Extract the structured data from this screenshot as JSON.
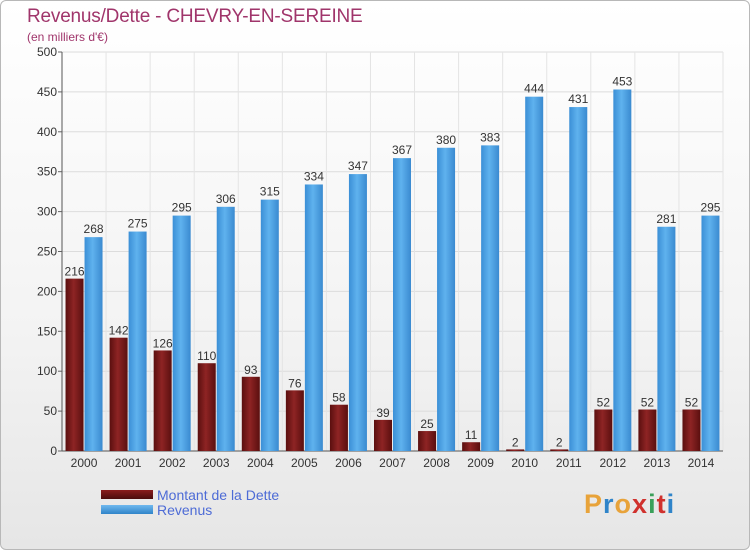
{
  "header": {
    "title": "Revenus/Dette - CHEVRY-EN-SEREINE",
    "subtitle": "(en milliers d'€)"
  },
  "legend": {
    "debt_label": "Montant de la Dette",
    "revenue_label": "Revenus"
  },
  "logo": {
    "text": "Proxiti",
    "letters": [
      "P",
      "r",
      "o",
      "x",
      "i",
      "t",
      "i"
    ],
    "colors": [
      "#e8a33a",
      "#2f84c9",
      "#e8a33a",
      "#d0312d",
      "#3aa05a",
      "#d0312d",
      "#2f84c9"
    ]
  },
  "colors": {
    "debt": "#7a1a1a",
    "revenue": "#4aa3e3",
    "title": "#a0356b"
  },
  "chart_data": {
    "type": "bar",
    "title": "Revenus/Dette - CHEVRY-EN-SEREINE",
    "subtitle": "(en milliers d'€)",
    "categories": [
      "2000",
      "2001",
      "2002",
      "2003",
      "2004",
      "2005",
      "2006",
      "2007",
      "2008",
      "2009",
      "2010",
      "2011",
      "2012",
      "2013",
      "2014"
    ],
    "series": [
      {
        "name": "Montant de la Dette",
        "values": [
          216,
          142,
          126,
          110,
          93,
          76,
          58,
          39,
          25,
          11,
          2,
          2,
          52,
          52,
          52
        ]
      },
      {
        "name": "Revenus",
        "values": [
          268,
          275,
          295,
          306,
          315,
          334,
          347,
          367,
          380,
          383,
          444,
          431,
          453,
          281,
          295
        ]
      }
    ],
    "ylim": [
      0,
      500
    ],
    "yticks": [
      0,
      50,
      100,
      150,
      200,
      250,
      300,
      350,
      400,
      450,
      500
    ],
    "grid": true,
    "legend_position": "bottom-left"
  }
}
